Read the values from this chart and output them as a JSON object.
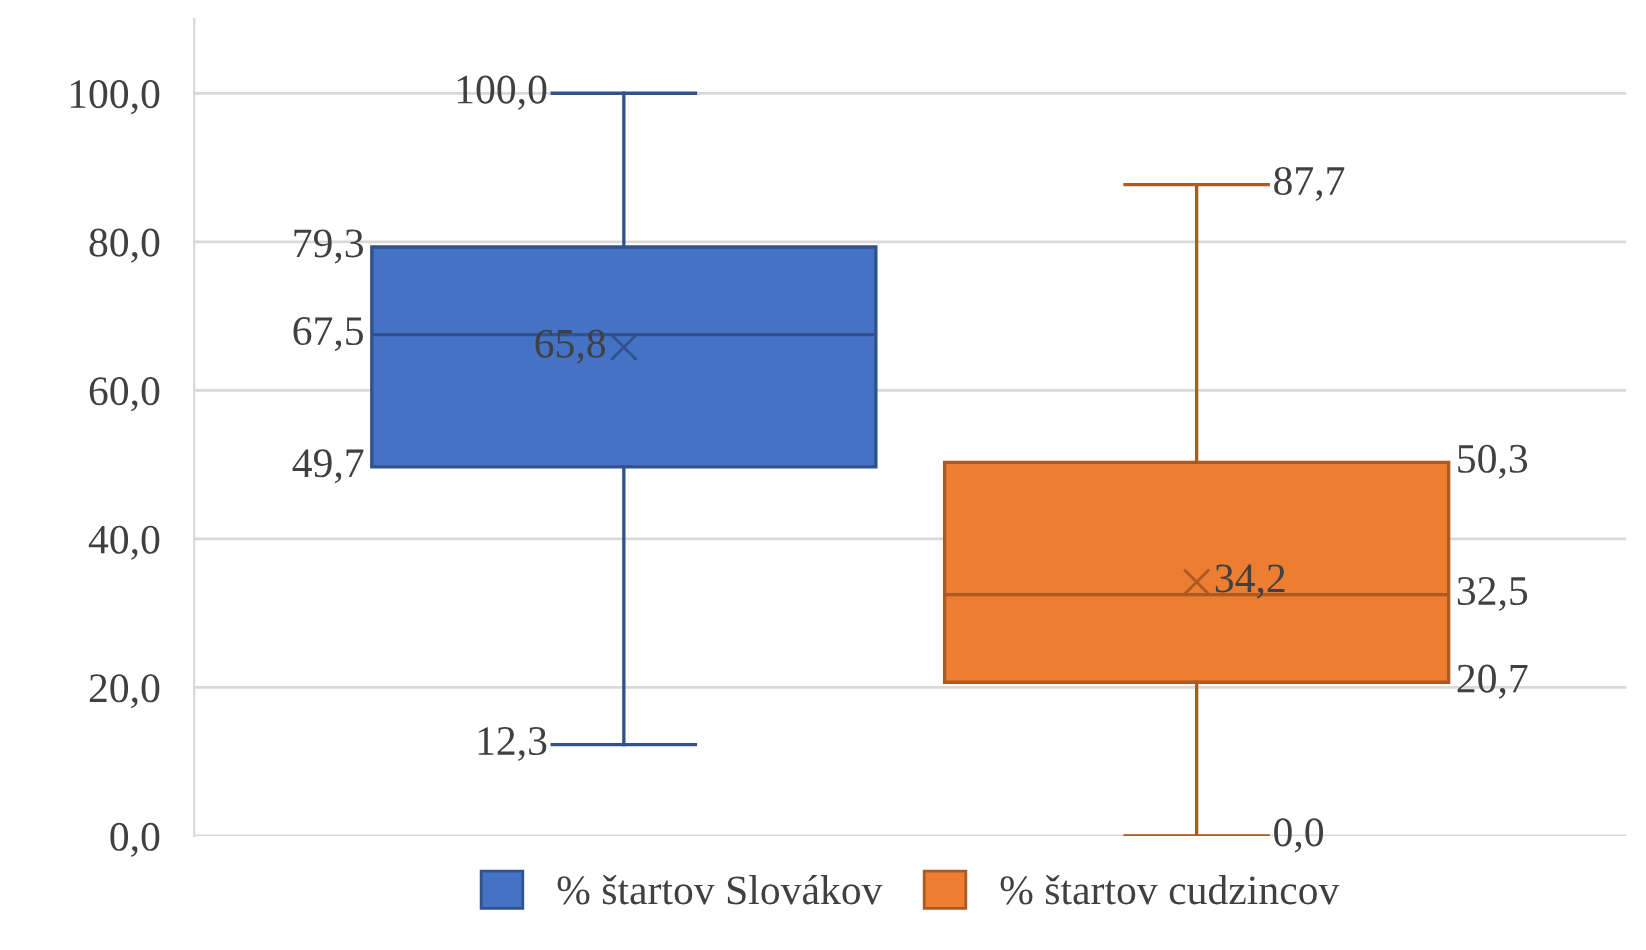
{
  "chart_data": {
    "type": "box",
    "categories": [
      null
    ],
    "series": [
      {
        "name": "% štartov Slovákov",
        "color": "#4472c4",
        "boxes": [
          {
            "low": 12.3,
            "q1": 49.7,
            "median": 67.5,
            "q3": 79.3,
            "high": 100.0,
            "mean": 65.8
          }
        ]
      },
      {
        "name": "% štartov cudzincov",
        "color": "#ed7d31",
        "boxes": [
          {
            "low": 0.0,
            "q1": 20.7,
            "median": 32.5,
            "q3": 50.3,
            "high": 87.7,
            "mean": 34.2
          }
        ]
      }
    ],
    "ylim": [
      0,
      110
    ],
    "yticks": [
      {
        "value": 0,
        "label": "0,0"
      },
      {
        "value": 20,
        "label": "20,0"
      },
      {
        "value": 40,
        "label": "40,0"
      },
      {
        "value": 60,
        "label": "60,0"
      },
      {
        "value": 80,
        "label": "80,0"
      },
      {
        "value": 100,
        "label": "100,0"
      }
    ],
    "annotations": [
      "100,0",
      "79,3",
      "67,5",
      "65,8",
      "49,7",
      "12,3",
      "87,7",
      "50,3",
      "32,5",
      "34,2",
      "20,7",
      "0,0"
    ],
    "grid": "y",
    "legend": "bottom",
    "marker": "cross"
  }
}
